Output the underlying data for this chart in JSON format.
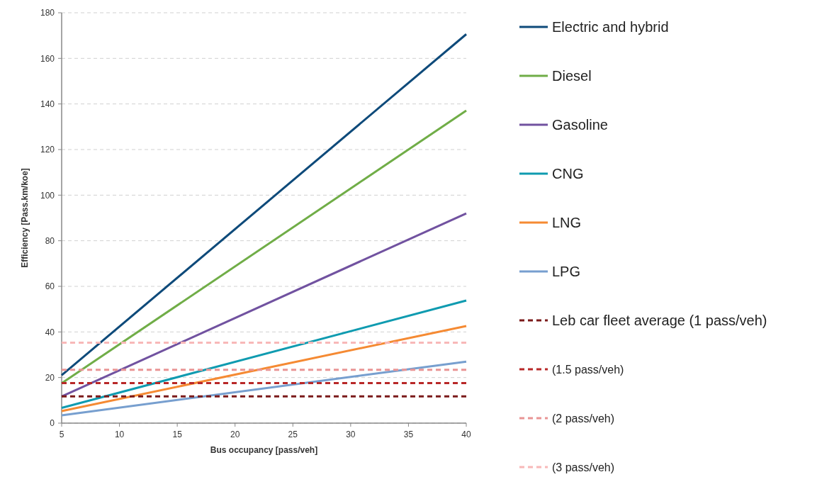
{
  "chart_data": {
    "type": "line",
    "xlabel": "Bus occupancy [pass/veh]",
    "ylabel": "Efficiency [Pass.km/koe]",
    "x": [
      5,
      40
    ],
    "xlim": [
      5,
      40
    ],
    "xticks": [
      5,
      10,
      15,
      20,
      25,
      30,
      35,
      40
    ],
    "ylim": [
      0,
      180
    ],
    "yticks": [
      0,
      20,
      40,
      60,
      80,
      100,
      120,
      140,
      160,
      180
    ],
    "grid": "y",
    "legend": "right",
    "marker": "none",
    "series": [
      {
        "name": "Electric and hybrid",
        "color": "#0e4a7a",
        "values": [
          21.0,
          170.6
        ]
      },
      {
        "name": "Diesel",
        "color": "#70ad47",
        "values": [
          17.5,
          137.1
        ]
      },
      {
        "name": "Gasoline",
        "color": "#7152a0",
        "values": [
          11.7,
          92
        ]
      },
      {
        "name": "CNG",
        "color": "#0f9bb0",
        "values": [
          6.7,
          53.8
        ]
      },
      {
        "name": "LNG",
        "color": "#f58a33",
        "values": [
          5.3,
          42.6
        ]
      },
      {
        "name": "LPG",
        "color": "#779fcf",
        "values": [
          3.4,
          27.0
        ]
      },
      {
        "name": "Leb car fleet average (1 pass/veh)",
        "color": "#7b1a1a",
        "line_style": "dashed",
        "values": [
          11.7,
          11.7
        ]
      },
      {
        "name": "(1.5 pass/veh)",
        "color": "#b82828",
        "line_style": "dashed",
        "values": [
          17.6,
          17.6
        ]
      },
      {
        "name": "(2 pass/veh)",
        "color": "#e99595",
        "line_style": "dashed",
        "values": [
          23.4,
          23.4
        ]
      },
      {
        "name": "(3 pass/veh)",
        "color": "#f8b8b8",
        "line_style": "dashed",
        "values": [
          35.3,
          35.3
        ]
      }
    ]
  }
}
